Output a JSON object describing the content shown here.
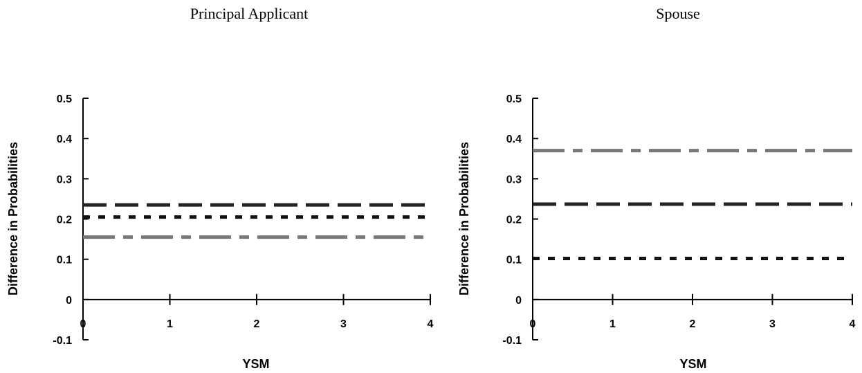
{
  "chart_data": [
    {
      "type": "line",
      "title": "Principal Applicant",
      "xlabel": "YSM",
      "ylabel": "Difference in Probabilities",
      "x": [
        0,
        1,
        2,
        3,
        4
      ],
      "xlim": [
        0,
        4
      ],
      "ylim": [
        -0.1,
        0.5
      ],
      "x_ticks": [
        "0",
        "1",
        "2",
        "3",
        "4"
      ],
      "y_ticks": [
        "0.5",
        "0.4",
        "0.3",
        "0.2",
        "0.1",
        "0",
        "-0.1"
      ],
      "grid": false,
      "series": [
        {
          "values": [
            0.235,
            0.235,
            0.235,
            0.235,
            0.235
          ],
          "color": "#222222",
          "style": "long-dash"
        },
        {
          "values": [
            0.205,
            0.205,
            0.205,
            0.205,
            0.205
          ],
          "color": "#111111",
          "style": "dotted"
        },
        {
          "values": [
            0.155,
            0.155,
            0.155,
            0.155,
            0.155
          ],
          "color": "#777777",
          "style": "dash-dot"
        }
      ]
    },
    {
      "type": "line",
      "title": "Spouse",
      "xlabel": "YSM",
      "ylabel": "Difference in Probabilities",
      "x": [
        0,
        1,
        2,
        3,
        4
      ],
      "xlim": [
        0,
        4
      ],
      "ylim": [
        -0.1,
        0.5
      ],
      "x_ticks": [
        "0",
        "1",
        "2",
        "3",
        "4"
      ],
      "y_ticks": [
        "0.5",
        "0.4",
        "0.3",
        "0.2",
        "0.1",
        "0",
        "-0.1"
      ],
      "grid": false,
      "series": [
        {
          "values": [
            0.37,
            0.37,
            0.37,
            0.37,
            0.37
          ],
          "color": "#777777",
          "style": "dash-dot"
        },
        {
          "values": [
            0.237,
            0.237,
            0.237,
            0.237,
            0.237
          ],
          "color": "#222222",
          "style": "long-dash"
        },
        {
          "values": [
            0.102,
            0.102,
            0.102,
            0.102,
            0.102
          ],
          "color": "#111111",
          "style": "dotted"
        }
      ]
    }
  ]
}
